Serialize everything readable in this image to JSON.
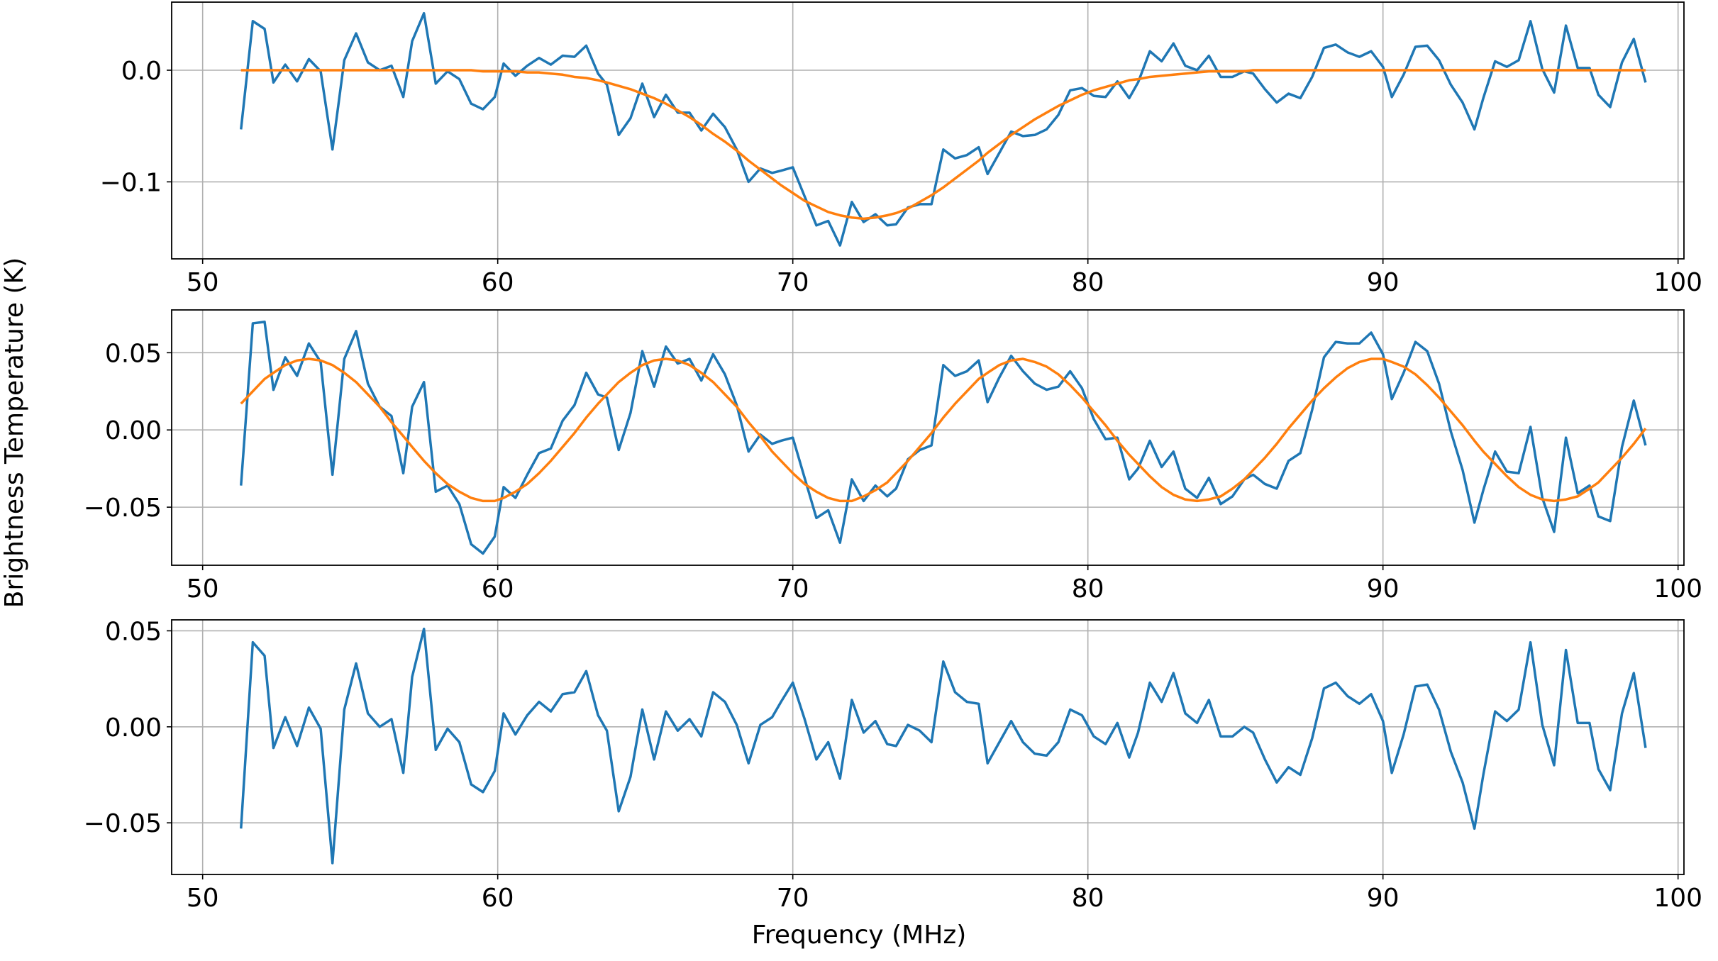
{
  "xlabel": "Frequency (MHz)",
  "ylabel": "Brightness Temperature (K)",
  "chart_data": [
    {
      "type": "line",
      "x": [
        51.3,
        51.7,
        52.1,
        52.4,
        52.8,
        53.2,
        53.6,
        54.0,
        54.4,
        54.8,
        55.2,
        55.6,
        56.0,
        56.4,
        56.8,
        57.1,
        57.5,
        57.9,
        58.3,
        58.7,
        59.1,
        59.5,
        59.9,
        60.2,
        60.6,
        61.0,
        61.4,
        61.8,
        62.2,
        62.6,
        63.0,
        63.4,
        63.7,
        64.1,
        64.5,
        64.9,
        65.3,
        65.7,
        66.1,
        66.5,
        66.9,
        67.3,
        67.7,
        68.1,
        68.5,
        68.9,
        69.3,
        69.6,
        70.0,
        70.4,
        70.8,
        71.2,
        71.6,
        72.0,
        72.4,
        72.8,
        73.2,
        73.5,
        73.9,
        74.3,
        74.7,
        75.1,
        75.5,
        75.9,
        76.3,
        76.6,
        77.0,
        77.4,
        77.8,
        78.2,
        78.6,
        79.0,
        79.4,
        79.8,
        80.2,
        80.6,
        81.0,
        81.4,
        81.7,
        82.1,
        82.5,
        82.9,
        83.3,
        83.7,
        84.1,
        84.5,
        84.9,
        85.3,
        85.6,
        86.0,
        86.4,
        86.8,
        87.2,
        87.6,
        88.0,
        88.4,
        88.8,
        89.2,
        89.6,
        90.0,
        90.3,
        90.7,
        91.1,
        91.5,
        91.9,
        92.3,
        92.7,
        93.1,
        93.4,
        93.8,
        94.2,
        94.6,
        95.0,
        95.4,
        95.8,
        96.2,
        96.6,
        97.0,
        97.3,
        97.7,
        98.1,
        98.5,
        98.9
      ],
      "series": [
        {
          "color": "#1f77b4",
          "values": [
            -0.053,
            0.044,
            0.037,
            -0.011,
            0.005,
            -0.01,
            0.01,
            -0.001,
            -0.071,
            0.009,
            0.033,
            0.007,
            0.0,
            0.004,
            -0.024,
            0.026,
            0.051,
            -0.012,
            -0.001,
            -0.008,
            -0.03,
            -0.035,
            -0.024,
            0.006,
            -0.005,
            0.004,
            0.011,
            0.005,
            0.013,
            0.012,
            0.022,
            -0.003,
            -0.013,
            -0.058,
            -0.043,
            -0.012,
            -0.042,
            -0.022,
            -0.038,
            -0.038,
            -0.054,
            -0.039,
            -0.051,
            -0.071,
            -0.1,
            -0.088,
            -0.092,
            -0.09,
            -0.087,
            -0.113,
            -0.139,
            -0.135,
            -0.157,
            -0.118,
            -0.136,
            -0.129,
            -0.139,
            -0.138,
            -0.123,
            -0.12,
            -0.12,
            -0.071,
            -0.079,
            -0.076,
            -0.069,
            -0.093,
            -0.074,
            -0.055,
            -0.059,
            -0.058,
            -0.053,
            -0.04,
            -0.018,
            -0.016,
            -0.023,
            -0.024,
            -0.01,
            -0.025,
            -0.011,
            0.017,
            0.008,
            0.024,
            0.004,
            0.0,
            0.013,
            -0.006,
            -0.006,
            -0.001,
            -0.003,
            -0.017,
            -0.029,
            -0.021,
            -0.025,
            -0.006,
            0.02,
            0.023,
            0.016,
            0.012,
            0.017,
            0.003,
            -0.024,
            -0.004,
            0.021,
            0.022,
            0.009,
            -0.013,
            -0.029,
            -0.053,
            -0.025,
            0.008,
            0.003,
            0.009,
            0.044,
            0.001,
            -0.02,
            0.04,
            0.002,
            0.002,
            -0.022,
            -0.033,
            0.007,
            0.028,
            -0.011
          ]
        },
        {
          "color": "#ff7f0e",
          "values": [
            0,
            0,
            0,
            0,
            0,
            0,
            0,
            0,
            0,
            0,
            0,
            0,
            0,
            0,
            0,
            0,
            0,
            0,
            0,
            0,
            0,
            -0.001,
            -0.001,
            -0.001,
            -0.001,
            -0.002,
            -0.002,
            -0.003,
            -0.004,
            -0.006,
            -0.007,
            -0.009,
            -0.011,
            -0.014,
            -0.017,
            -0.021,
            -0.025,
            -0.03,
            -0.036,
            -0.042,
            -0.049,
            -0.057,
            -0.064,
            -0.072,
            -0.081,
            -0.089,
            -0.097,
            -0.103,
            -0.11,
            -0.117,
            -0.122,
            -0.127,
            -0.13,
            -0.132,
            -0.133,
            -0.132,
            -0.13,
            -0.128,
            -0.124,
            -0.118,
            -0.112,
            -0.105,
            -0.097,
            -0.089,
            -0.081,
            -0.074,
            -0.066,
            -0.058,
            -0.051,
            -0.044,
            -0.038,
            -0.032,
            -0.027,
            -0.022,
            -0.018,
            -0.015,
            -0.012,
            -0.009,
            -0.008,
            -0.006,
            -0.005,
            -0.004,
            -0.003,
            -0.002,
            -0.001,
            -0.001,
            -0.001,
            -0.001,
            0,
            0,
            0,
            0,
            0,
            0,
            0,
            0,
            0,
            0,
            0,
            0,
            0,
            0,
            0,
            0,
            0,
            0,
            0,
            0,
            0,
            0,
            0,
            0,
            0,
            0,
            0,
            0,
            0,
            0,
            0,
            0,
            0,
            0,
            0
          ]
        }
      ],
      "xlim": [
        48.95,
        100.2
      ],
      "xticks": [
        50,
        60,
        70,
        80,
        90,
        100
      ],
      "ylim": [
        -0.169,
        0.061
      ],
      "yticks": [
        {
          "value": -0.1,
          "label": "−0.1"
        },
        {
          "value": 0.0,
          "label": "0.0"
        }
      ],
      "grid": true
    },
    {
      "type": "line",
      "x": [
        51.3,
        51.7,
        52.1,
        52.4,
        52.8,
        53.2,
        53.6,
        54.0,
        54.4,
        54.8,
        55.2,
        55.6,
        56.0,
        56.4,
        56.8,
        57.1,
        57.5,
        57.9,
        58.3,
        58.7,
        59.1,
        59.5,
        59.9,
        60.2,
        60.6,
        61.0,
        61.4,
        61.8,
        62.2,
        62.6,
        63.0,
        63.4,
        63.7,
        64.1,
        64.5,
        64.9,
        65.3,
        65.7,
        66.1,
        66.5,
        66.9,
        67.3,
        67.7,
        68.1,
        68.5,
        68.9,
        69.3,
        69.6,
        70.0,
        70.4,
        70.8,
        71.2,
        71.6,
        72.0,
        72.4,
        72.8,
        73.2,
        73.5,
        73.9,
        74.3,
        74.7,
        75.1,
        75.5,
        75.9,
        76.3,
        76.6,
        77.0,
        77.4,
        77.8,
        78.2,
        78.6,
        79.0,
        79.4,
        79.8,
        80.2,
        80.6,
        81.0,
        81.4,
        81.7,
        82.1,
        82.5,
        82.9,
        83.3,
        83.7,
        84.1,
        84.5,
        84.9,
        85.3,
        85.6,
        86.0,
        86.4,
        86.8,
        87.2,
        87.6,
        88.0,
        88.4,
        88.8,
        89.2,
        89.6,
        90.0,
        90.3,
        90.7,
        91.1,
        91.5,
        91.9,
        92.3,
        92.7,
        93.1,
        93.4,
        93.8,
        94.2,
        94.6,
        95.0,
        95.4,
        95.8,
        96.2,
        96.6,
        97.0,
        97.3,
        97.7,
        98.1,
        98.5,
        98.9
      ],
      "series": [
        {
          "color": "#1f77b4",
          "values": [
            -0.036,
            0.069,
            0.07,
            0.026,
            0.047,
            0.035,
            0.056,
            0.044,
            -0.029,
            0.046,
            0.064,
            0.03,
            0.015,
            0.009,
            -0.028,
            0.015,
            0.031,
            -0.04,
            -0.036,
            -0.048,
            -0.074,
            -0.08,
            -0.069,
            -0.037,
            -0.044,
            -0.029,
            -0.015,
            -0.012,
            0.006,
            0.016,
            0.037,
            0.023,
            0.021,
            -0.013,
            0.011,
            0.051,
            0.028,
            0.054,
            0.043,
            0.046,
            0.032,
            0.049,
            0.036,
            0.016,
            -0.014,
            -0.003,
            -0.009,
            -0.007,
            -0.005,
            -0.031,
            -0.057,
            -0.052,
            -0.073,
            -0.032,
            -0.046,
            -0.036,
            -0.043,
            -0.038,
            -0.019,
            -0.013,
            -0.01,
            0.042,
            0.035,
            0.038,
            0.045,
            0.018,
            0.034,
            0.048,
            0.038,
            0.03,
            0.026,
            0.028,
            0.038,
            0.027,
            0.007,
            -0.006,
            -0.005,
            -0.032,
            -0.025,
            -0.007,
            -0.024,
            -0.014,
            -0.038,
            -0.044,
            -0.031,
            -0.048,
            -0.043,
            -0.032,
            -0.029,
            -0.035,
            -0.038,
            -0.02,
            -0.015,
            0.013,
            0.047,
            0.057,
            0.056,
            0.056,
            0.063,
            0.049,
            0.02,
            0.037,
            0.057,
            0.051,
            0.03,
            -0.001,
            -0.026,
            -0.06,
            -0.039,
            -0.014,
            -0.027,
            -0.028,
            0.002,
            -0.044,
            -0.066,
            -0.005,
            -0.041,
            -0.036,
            -0.056,
            -0.059,
            -0.011,
            0.019,
            -0.01
          ]
        },
        {
          "color": "#ff7f0e",
          "values": [
            0.017,
            0.025,
            0.033,
            0.037,
            0.042,
            0.045,
            0.046,
            0.045,
            0.042,
            0.037,
            0.031,
            0.023,
            0.015,
            0.005,
            -0.004,
            -0.011,
            -0.02,
            -0.028,
            -0.035,
            -0.04,
            -0.044,
            -0.046,
            -0.046,
            -0.044,
            -0.04,
            -0.035,
            -0.028,
            -0.02,
            -0.011,
            -0.002,
            0.008,
            0.017,
            0.023,
            0.031,
            0.037,
            0.042,
            0.045,
            0.046,
            0.045,
            0.042,
            0.037,
            0.031,
            0.023,
            0.015,
            0.005,
            -0.004,
            -0.014,
            -0.02,
            -0.028,
            -0.035,
            -0.04,
            -0.044,
            -0.046,
            -0.046,
            -0.043,
            -0.039,
            -0.034,
            -0.028,
            -0.02,
            -0.011,
            -0.002,
            0.008,
            0.017,
            0.025,
            0.033,
            0.037,
            0.042,
            0.045,
            0.046,
            0.044,
            0.041,
            0.036,
            0.029,
            0.021,
            0.012,
            0.003,
            -0.007,
            -0.016,
            -0.022,
            -0.03,
            -0.037,
            -0.042,
            -0.045,
            -0.046,
            -0.045,
            -0.043,
            -0.038,
            -0.032,
            -0.026,
            -0.018,
            -0.009,
            0.001,
            0.01,
            0.019,
            0.027,
            0.034,
            0.04,
            0.044,
            0.046,
            0.046,
            0.044,
            0.041,
            0.036,
            0.029,
            0.021,
            0.012,
            0.003,
            -0.007,
            -0.014,
            -0.022,
            -0.03,
            -0.037,
            -0.042,
            -0.045,
            -0.046,
            -0.045,
            -0.043,
            -0.038,
            -0.034,
            -0.026,
            -0.018,
            -0.009,
            0.001
          ]
        }
      ],
      "xlim": [
        48.95,
        100.2
      ],
      "xticks": [
        50,
        60,
        70,
        80,
        90,
        100
      ],
      "ylim": [
        -0.0876,
        0.0777
      ],
      "yticks": [
        {
          "value": -0.05,
          "label": "−0.05"
        },
        {
          "value": 0.0,
          "label": "0.00"
        },
        {
          "value": 0.05,
          "label": "0.05"
        }
      ],
      "grid": true
    },
    {
      "type": "line",
      "x": [
        51.3,
        51.7,
        52.1,
        52.4,
        52.8,
        53.2,
        53.6,
        54.0,
        54.4,
        54.8,
        55.2,
        55.6,
        56.0,
        56.4,
        56.8,
        57.1,
        57.5,
        57.9,
        58.3,
        58.7,
        59.1,
        59.5,
        59.9,
        60.2,
        60.6,
        61.0,
        61.4,
        61.8,
        62.2,
        62.6,
        63.0,
        63.4,
        63.7,
        64.1,
        64.5,
        64.9,
        65.3,
        65.7,
        66.1,
        66.5,
        66.9,
        67.3,
        67.7,
        68.1,
        68.5,
        68.9,
        69.3,
        69.6,
        70.0,
        70.4,
        70.8,
        71.2,
        71.6,
        72.0,
        72.4,
        72.8,
        73.2,
        73.5,
        73.9,
        74.3,
        74.7,
        75.1,
        75.5,
        75.9,
        76.3,
        76.6,
        77.0,
        77.4,
        77.8,
        78.2,
        78.6,
        79.0,
        79.4,
        79.8,
        80.2,
        80.6,
        81.0,
        81.4,
        81.7,
        82.1,
        82.5,
        82.9,
        83.3,
        83.7,
        84.1,
        84.5,
        84.9,
        85.3,
        85.6,
        86.0,
        86.4,
        86.8,
        87.2,
        87.6,
        88.0,
        88.4,
        88.8,
        89.2,
        89.6,
        90.0,
        90.3,
        90.7,
        91.1,
        91.5,
        91.9,
        92.3,
        92.7,
        93.1,
        93.4,
        93.8,
        94.2,
        94.6,
        95.0,
        95.4,
        95.8,
        96.2,
        96.6,
        97.0,
        97.3,
        97.7,
        98.1,
        98.5,
        98.9
      ],
      "series": [
        {
          "color": "#1f77b4",
          "values": [
            -0.053,
            0.044,
            0.037,
            -0.011,
            0.005,
            -0.01,
            0.01,
            -0.001,
            -0.071,
            0.009,
            0.033,
            0.007,
            0.0,
            0.004,
            -0.024,
            0.026,
            0.051,
            -0.012,
            -0.001,
            -0.008,
            -0.03,
            -0.034,
            -0.023,
            0.007,
            -0.004,
            0.006,
            0.013,
            0.008,
            0.017,
            0.018,
            0.029,
            0.006,
            -0.002,
            -0.044,
            -0.026,
            0.009,
            -0.017,
            0.008,
            -0.002,
            0.004,
            -0.005,
            0.018,
            0.013,
            0.001,
            -0.019,
            0.001,
            0.005,
            0.013,
            0.023,
            0.004,
            -0.017,
            -0.008,
            -0.027,
            0.014,
            -0.003,
            0.003,
            -0.009,
            -0.01,
            0.001,
            -0.002,
            -0.008,
            0.034,
            0.018,
            0.013,
            0.012,
            -0.019,
            -0.008,
            0.003,
            -0.008,
            -0.014,
            -0.015,
            -0.008,
            0.009,
            0.006,
            -0.005,
            -0.009,
            0.002,
            -0.016,
            -0.003,
            0.023,
            0.013,
            0.028,
            0.007,
            0.002,
            0.014,
            -0.005,
            -0.005,
            0.0,
            -0.003,
            -0.017,
            -0.029,
            -0.021,
            -0.025,
            -0.006,
            0.02,
            0.023,
            0.016,
            0.012,
            0.017,
            0.003,
            -0.024,
            -0.004,
            0.021,
            0.022,
            0.009,
            -0.013,
            -0.029,
            -0.053,
            -0.025,
            0.008,
            0.003,
            0.009,
            0.044,
            0.001,
            -0.02,
            0.04,
            0.002,
            0.002,
            -0.022,
            -0.033,
            0.007,
            0.028,
            -0.011
          ]
        }
      ],
      "xlim": [
        48.95,
        100.2
      ],
      "xticks": [
        50,
        60,
        70,
        80,
        90,
        100
      ],
      "ylim": [
        -0.0769,
        0.0557
      ],
      "yticks": [
        {
          "value": -0.05,
          "label": "−0.05"
        },
        {
          "value": 0.0,
          "label": "0.00"
        },
        {
          "value": 0.05,
          "label": "0.05"
        }
      ],
      "grid": true
    }
  ]
}
